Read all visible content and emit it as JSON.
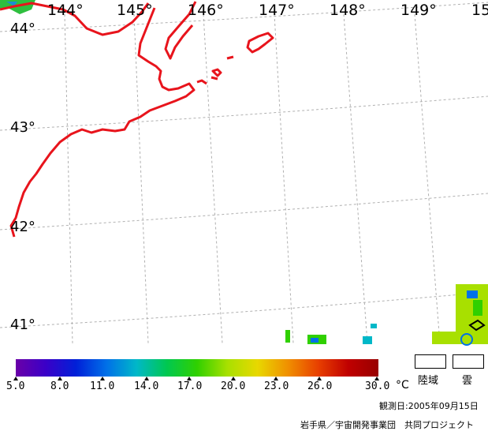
{
  "map": {
    "longitude_labels": [
      "144°",
      "145°",
      "146°",
      "147°",
      "148°",
      "149°",
      "15"
    ],
    "latitude_labels": [
      "44°",
      "43°",
      "42°",
      "41°"
    ],
    "coastline_color": "#e8141c",
    "grid_color": "#b0b0b0"
  },
  "legend": {
    "ticks": [
      "5.0",
      "8.0",
      "11.0",
      "14.0",
      "17.0",
      "20.0",
      "23.0",
      "26.0",
      "30.0"
    ],
    "unit": "°C",
    "land_label": "陸域",
    "cloud_label": "雲",
    "gradient_colors": [
      "#6a00a8",
      "#3a00c8",
      "#0020d8",
      "#0070e8",
      "#00b8c8",
      "#00c850",
      "#30d000",
      "#a8e000",
      "#e8d800",
      "#f09000",
      "#e84000",
      "#c00000",
      "#980000"
    ]
  },
  "footer": {
    "date": "観測日:2005年09月15日",
    "credit": "岩手県／宇宙開発事業団　共同プロジェクト"
  }
}
